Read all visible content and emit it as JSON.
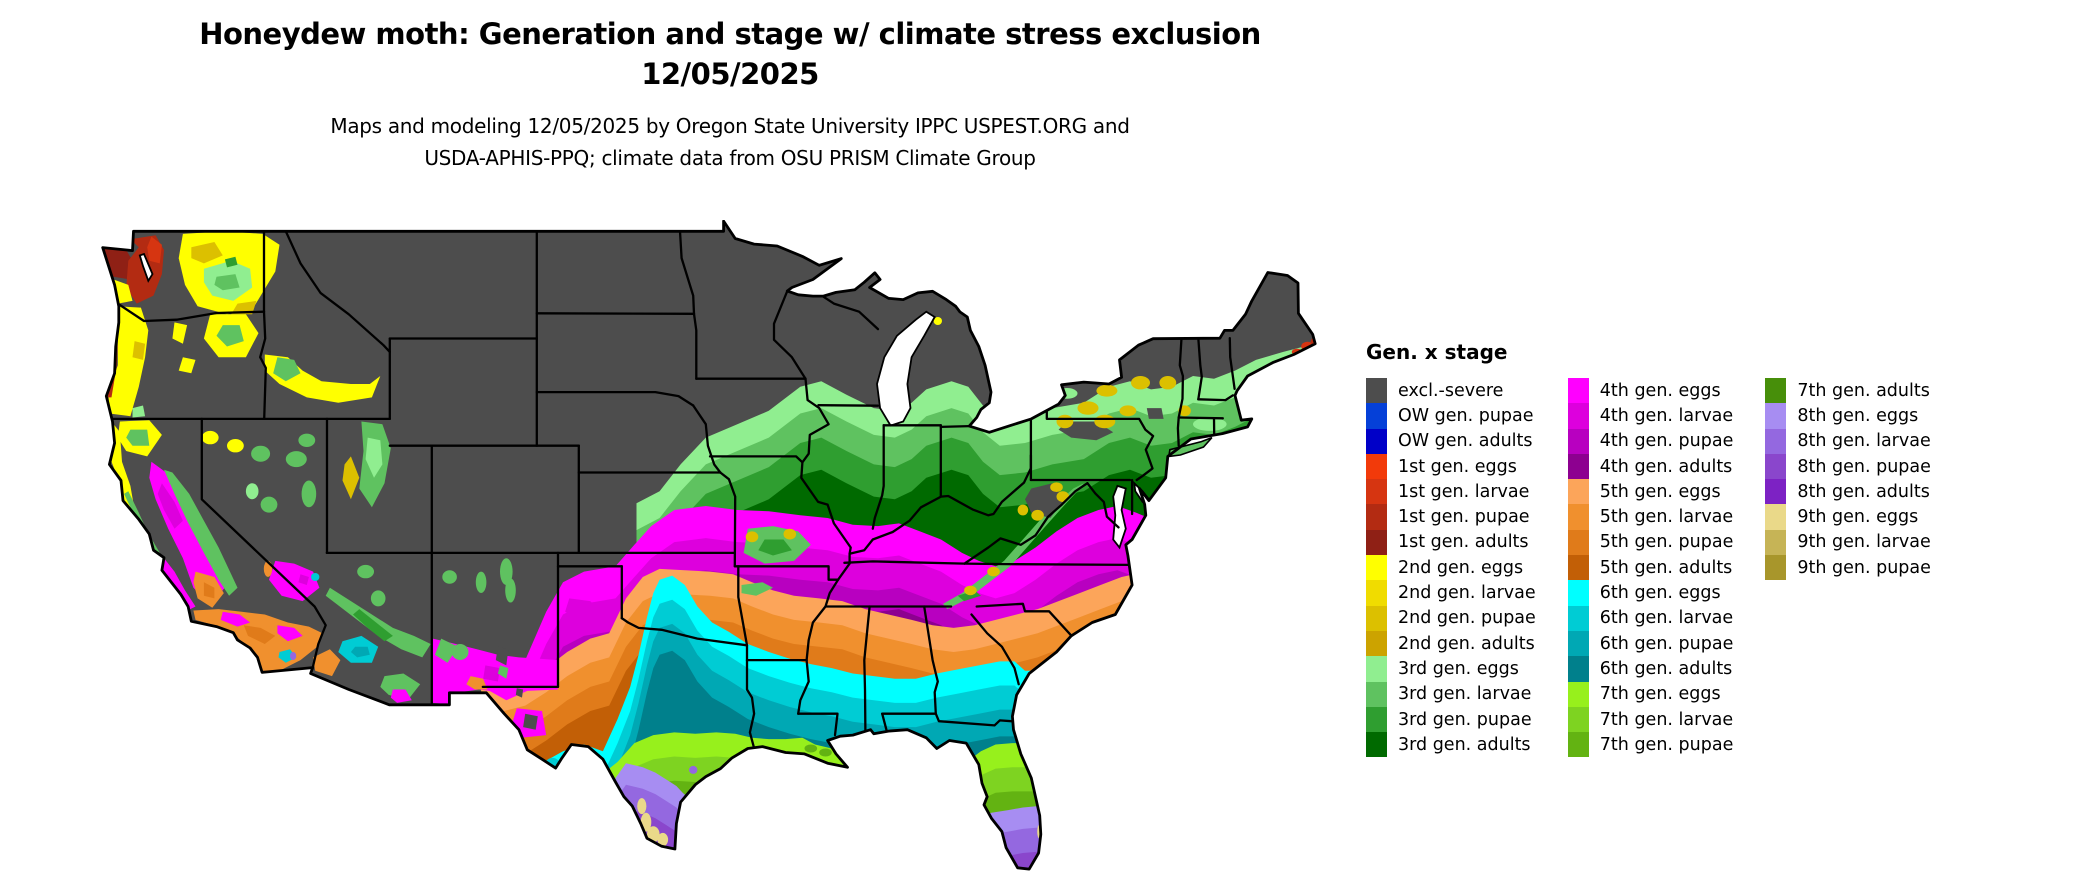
{
  "header": {
    "title_line1": "Honeydew moth: Generation and stage w/ climate stress exclusion",
    "title_line2": "12/05/2025",
    "subtitle_line1": "Maps and modeling 12/05/2025 by Oregon State University IPPC USPEST.ORG and",
    "subtitle_line2": "USDA-APHIS-PPQ; climate data from OSU PRISM Climate Group"
  },
  "legend": {
    "title": "Gen. x stage",
    "columns": [
      [
        {
          "label": "excl.-severe",
          "color": "#4d4d4d"
        },
        {
          "label": "OW gen. pupae",
          "color": "#0540d8"
        },
        {
          "label": "OW gen. adults",
          "color": "#0000c8"
        },
        {
          "label": "1st gen. eggs",
          "color": "#f23a0a"
        },
        {
          "label": "1st gen. larvae",
          "color": "#d63511"
        },
        {
          "label": "1st gen. pupae",
          "color": "#b32b12"
        },
        {
          "label": "1st gen. adults",
          "color": "#8f2015"
        },
        {
          "label": "2nd gen. eggs",
          "color": "#ffff00"
        },
        {
          "label": "2nd gen. larvae",
          "color": "#f0dc00"
        },
        {
          "label": "2nd gen. pupae",
          "color": "#dcc000"
        },
        {
          "label": "2nd gen. adults",
          "color": "#cca300"
        },
        {
          "label": "3rd gen. eggs",
          "color": "#90ee90"
        },
        {
          "label": "3rd gen. larvae",
          "color": "#5fc260"
        },
        {
          "label": "3rd gen. pupae",
          "color": "#2f9e30"
        },
        {
          "label": "3rd gen. adults",
          "color": "#006a00"
        }
      ],
      [
        {
          "label": "4th gen. eggs",
          "color": "#ff00ff"
        },
        {
          "label": "4th gen. larvae",
          "color": "#dd00dd"
        },
        {
          "label": "4th gen. pupae",
          "color": "#b800c0"
        },
        {
          "label": "4th gen. adults",
          "color": "#8d0090"
        },
        {
          "label": "5th gen. eggs",
          "color": "#fca55a"
        },
        {
          "label": "5th gen. larvae",
          "color": "#f0902e"
        },
        {
          "label": "5th gen. pupae",
          "color": "#e07b1a"
        },
        {
          "label": "5th gen. adults",
          "color": "#c25f06"
        },
        {
          "label": "6th gen. eggs",
          "color": "#00ffff"
        },
        {
          "label": "6th gen. larvae",
          "color": "#00ccd4"
        },
        {
          "label": "6th gen. pupae",
          "color": "#00a8b4"
        },
        {
          "label": "6th gen. adults",
          "color": "#00808c"
        },
        {
          "label": "7th gen. eggs",
          "color": "#97f01c"
        },
        {
          "label": "7th gen. larvae",
          "color": "#7ed321"
        },
        {
          "label": "7th gen. pupae",
          "color": "#63b312"
        }
      ],
      [
        {
          "label": "7th gen. adults",
          "color": "#478f0a"
        },
        {
          "label": "8th gen. eggs",
          "color": "#a78df2"
        },
        {
          "label": "8th gen. larvae",
          "color": "#9468e0"
        },
        {
          "label": "8th gen. pupae",
          "color": "#8a46cc"
        },
        {
          "label": "8th gen. adults",
          "color": "#7d22c4"
        },
        {
          "label": "9th gen. eggs",
          "color": "#ead989"
        },
        {
          "label": "9th gen. larvae",
          "color": "#c6b456"
        },
        {
          "label": "9th gen. pupae",
          "color": "#a8962b"
        }
      ]
    ]
  }
}
